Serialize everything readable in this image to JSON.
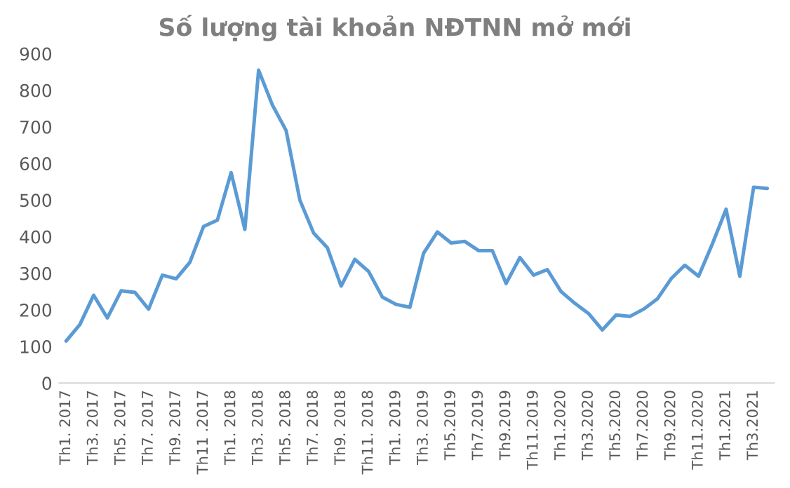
{
  "chart_data": {
    "type": "line",
    "title": "Số lượng tài khoản NĐTNN mở mới",
    "categories": [
      "Th1. 2017",
      null,
      "Th3. 2017",
      null,
      "Th5. 2017",
      null,
      "Th7. 2017",
      null,
      "Th9. 2017",
      null,
      "Th11 .2017",
      null,
      "Th1. 2018",
      null,
      "Th3. 2018",
      null,
      "Th5. 2018",
      null,
      "Th7. 2018",
      null,
      "Th9. 2018",
      null,
      "Th11. 2018",
      null,
      "Th1. 2019",
      null,
      "Th3. 2019",
      null,
      "Th5.2019",
      null,
      "Th7.2019",
      null,
      "Th9.2019",
      null,
      "Th11.2019",
      null,
      "Th1.2020",
      null,
      "Th3.2020",
      null,
      "Th5.2020",
      null,
      "Th7.2020",
      null,
      "Th9.2020",
      null,
      "Th11.2020",
      null,
      "Th1.2021",
      null,
      "Th3.2021",
      null
    ],
    "series": [
      {
        "color": "#5b9bd5",
        "values": [
          115,
          160,
          240,
          178,
          252,
          248,
          202,
          295,
          285,
          330,
          428,
          445,
          575,
          420,
          855,
          760,
          690,
          500,
          410,
          370,
          265,
          338,
          305,
          235,
          215,
          207,
          355,
          413,
          383,
          387,
          362,
          362,
          272,
          343,
          295,
          310,
          250,
          218,
          190,
          145,
          186,
          182,
          202,
          230,
          285,
          322,
          292,
          380,
          475,
          292,
          535,
          532
        ]
      }
    ],
    "ylim": [
      0,
      900
    ],
    "yticks": [
      0,
      100,
      200,
      300,
      400,
      500,
      600,
      700,
      800,
      900
    ],
    "grid": false,
    "legend": false,
    "marker": "none",
    "line_style": "solid"
  }
}
